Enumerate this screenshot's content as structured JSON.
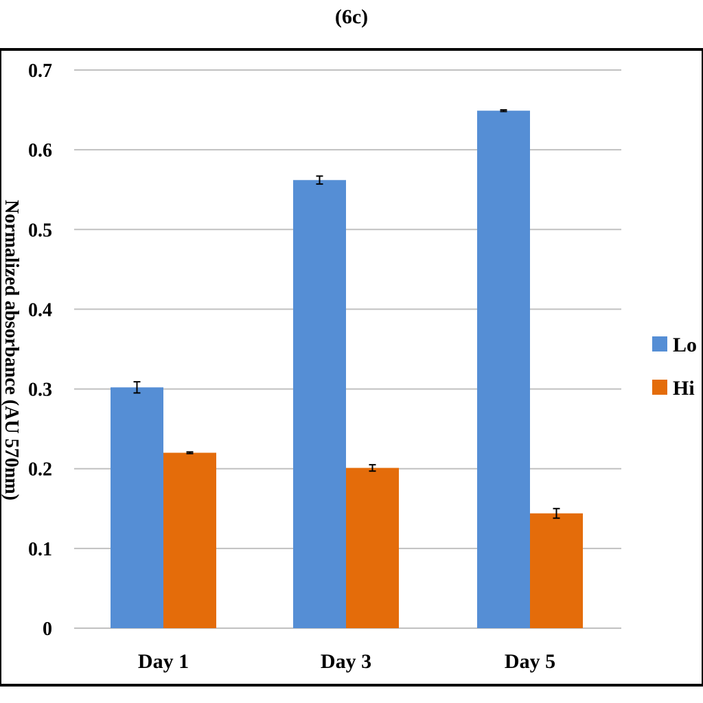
{
  "figure_label": "(6c)",
  "chart_data": {
    "type": "bar",
    "title": "",
    "xlabel": "",
    "ylabel": "Normalized absorbance (AU 570nm)",
    "categories": [
      "Day 1",
      "Day 3",
      "Day 5"
    ],
    "ylim": [
      0,
      0.7
    ],
    "yticks": [
      "0",
      "0.1",
      "0.2",
      "0.3",
      "0.4",
      "0.5",
      "0.6",
      "0.7"
    ],
    "grid": true,
    "legend_position": "right",
    "series": [
      {
        "name": "Lo",
        "color": "#558ED5",
        "values": [
          0.302,
          0.562,
          0.649
        ],
        "errors": [
          0.007,
          0.005,
          0.001
        ]
      },
      {
        "name": "Hi",
        "color": "#E46C0A",
        "values": [
          0.22,
          0.201,
          0.144
        ],
        "errors": [
          0.001,
          0.004,
          0.006
        ]
      }
    ]
  }
}
